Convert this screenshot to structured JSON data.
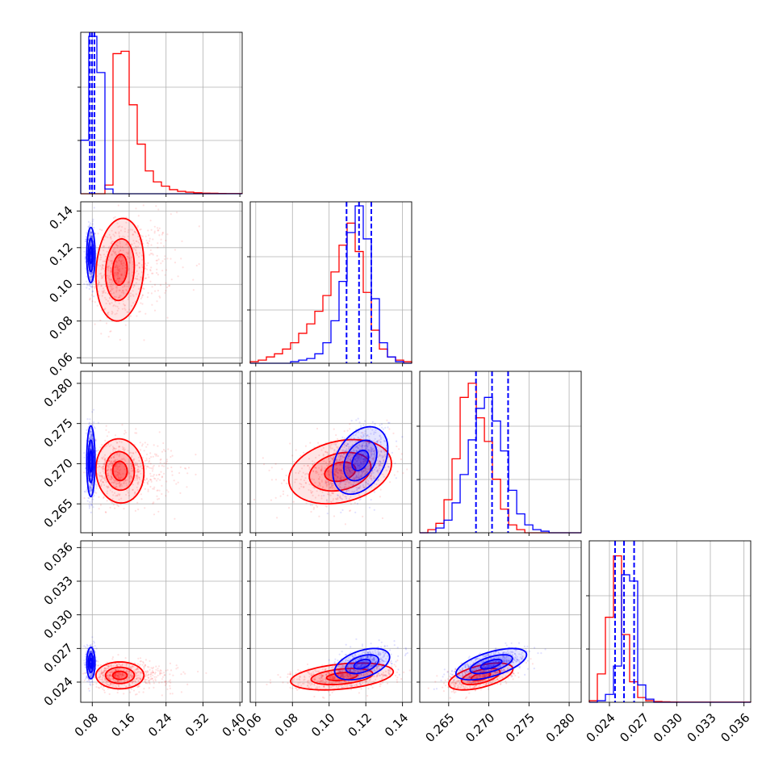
{
  "chart_data": {
    "type": "corner",
    "grid": true,
    "series": [
      {
        "name": "",
        "color": "#0000ff"
      },
      {
        "name": "",
        "color": "#ff0000"
      }
    ],
    "parameters": [
      {
        "ticks": [
          0.08,
          0.16,
          0.24,
          0.32,
          0.4
        ],
        "tick_labels": [
          "0.08",
          "0.16",
          "0.24",
          "0.32",
          "0.40"
        ],
        "range": [
          0.055,
          0.405
        ]
      },
      {
        "ticks": [
          0.06,
          0.08,
          0.1,
          0.12,
          0.14
        ],
        "tick_labels": [
          "0.06",
          "0.08",
          "0.10",
          "0.12",
          "0.14"
        ],
        "range": [
          0.057,
          0.145
        ]
      },
      {
        "ticks": [
          0.265,
          0.27,
          0.275,
          0.28
        ],
        "tick_labels": [
          "0.265",
          "0.270",
          "0.275",
          "0.280"
        ],
        "range": [
          0.2614,
          0.2815
        ]
      },
      {
        "ticks": [
          0.024,
          0.027,
          0.03,
          0.033,
          0.036
        ],
        "tick_labels": [
          "0.024",
          "0.027",
          "0.030",
          "0.033",
          "0.036"
        ],
        "range": [
          0.0222,
          0.0366
        ]
      }
    ],
    "histograms": [
      {
        "param": 0,
        "red": {
          "edges": [
            0.055,
            0.0725,
            0.09,
            0.1075,
            0.125,
            0.1425,
            0.16,
            0.1775,
            0.195,
            0.2125,
            0.23,
            0.2475,
            0.265,
            0.2825,
            0.3,
            0.3175,
            0.335,
            0.3525,
            0.37,
            0.3875,
            0.405
          ],
          "counts": [
            0,
            0,
            0,
            0.055,
            0.89,
            0.905,
            0.565,
            0.315,
            0.145,
            0.075,
            0.048,
            0.026,
            0.015,
            0.01,
            0.006,
            0.004,
            0.003,
            0.002,
            0.001,
            0.001
          ]
        },
        "blue": {
          "edges": [
            0.055,
            0.0725,
            0.09,
            0.1075,
            0.125,
            0.1425,
            0.16,
            0.1775,
            0.195,
            0.2125,
            0.23,
            0.2475,
            0.265,
            0.2825,
            0.3,
            0.3175,
            0.335,
            0.3525,
            0.37,
            0.3875,
            0.405
          ],
          "counts": [
            0.34,
            1.0,
            0.77,
            0.03,
            0,
            0,
            0,
            0,
            0,
            0,
            0,
            0,
            0,
            0,
            0,
            0,
            0,
            0,
            0,
            0
          ]
        },
        "quantiles": [
          0.0748,
          0.0796,
          0.0848
        ]
      },
      {
        "param": 1,
        "red": {
          "edges": [
            0.057,
            0.0614,
            0.0658,
            0.0702,
            0.0746,
            0.079,
            0.0834,
            0.0878,
            0.0922,
            0.0966,
            0.101,
            0.1054,
            0.1098,
            0.1142,
            0.1186,
            0.123,
            0.1274,
            0.1318,
            0.1362,
            0.1406,
            0.145
          ],
          "counts": [
            0.01,
            0.02,
            0.04,
            0.06,
            0.09,
            0.13,
            0.19,
            0.25,
            0.33,
            0.43,
            0.58,
            0.75,
            0.89,
            0.71,
            0.45,
            0.21,
            0.09,
            0.04,
            0.02,
            0.01
          ]
        },
        "blue": {
          "edges": [
            0.057,
            0.0614,
            0.0658,
            0.0702,
            0.0746,
            0.079,
            0.0834,
            0.0878,
            0.0922,
            0.0966,
            0.101,
            0.1054,
            0.1098,
            0.1142,
            0.1186,
            0.123,
            0.1274,
            0.1318,
            0.1362,
            0.1406,
            0.145
          ],
          "counts": [
            0,
            0,
            0,
            0,
            0,
            0.01,
            0.02,
            0.03,
            0.06,
            0.13,
            0.27,
            0.52,
            0.83,
            1.0,
            0.79,
            0.41,
            0.13,
            0.04,
            0.01,
            0
          ]
        },
        "quantiles": [
          0.1095,
          0.1163,
          0.123
        ]
      },
      {
        "param": 2,
        "red": {
          "edges": [
            0.2614,
            0.26241,
            0.26341,
            0.26442,
            0.26542,
            0.26643,
            0.26744,
            0.26844,
            0.26945,
            0.27045,
            0.27146,
            0.27247,
            0.27347,
            0.27448,
            0.27548,
            0.27649,
            0.2775,
            0.2785,
            0.27951,
            0.28051,
            0.2815
          ],
          "counts": [
            0,
            0.02,
            0.06,
            0.21,
            0.47,
            0.86,
            0.95,
            0.73,
            0.58,
            0.34,
            0.15,
            0.05,
            0.02,
            0,
            0,
            0,
            0,
            0,
            0,
            0
          ]
        },
        "blue": {
          "edges": [
            0.2614,
            0.26241,
            0.26341,
            0.26442,
            0.26542,
            0.26643,
            0.26744,
            0.26844,
            0.26945,
            0.27045,
            0.27146,
            0.27247,
            0.27347,
            0.27448,
            0.27548,
            0.27649,
            0.2775,
            0.2785,
            0.27951,
            0.28051,
            0.2815
          ],
          "counts": [
            0,
            0,
            0.03,
            0.08,
            0.19,
            0.37,
            0.59,
            0.79,
            0.86,
            0.71,
            0.52,
            0.27,
            0.12,
            0.05,
            0.02,
            0.01,
            0,
            0,
            0,
            0
          ]
        },
        "quantiles": [
          0.2684,
          0.2704,
          0.2724
        ]
      },
      {
        "param": 3,
        "red": {
          "edges": [
            0.0222,
            0.02292,
            0.02364,
            0.02436,
            0.02508,
            0.0258,
            0.02652,
            0.02724,
            0.02796,
            0.02868,
            0.0294,
            0.03012,
            0.03084,
            0.03156,
            0.03228,
            0.033,
            0.03372,
            0.03444,
            0.03516,
            0.03588,
            0.0366
          ],
          "counts": [
            0.01,
            0.18,
            0.54,
            0.93,
            0.43,
            0.13,
            0.03,
            0.01,
            0.005,
            0.003,
            0.002,
            0.001,
            0.001,
            0.001,
            0.001,
            0.001,
            0.001,
            0.001,
            0.001,
            0.001
          ]
        },
        "blue": {
          "edges": [
            0.0222,
            0.02292,
            0.02364,
            0.02436,
            0.02508,
            0.0258,
            0.02652,
            0.02724,
            0.02796,
            0.02868,
            0.0294,
            0.03012,
            0.03084,
            0.03156,
            0.03228,
            0.033,
            0.03372,
            0.03444,
            0.03516,
            0.03588,
            0.0366
          ],
          "counts": [
            0,
            0.01,
            0.05,
            0.23,
            0.81,
            0.77,
            0.11,
            0.02,
            0,
            0,
            0,
            0,
            0,
            0,
            0,
            0,
            0,
            0,
            0,
            0
          ]
        },
        "quantiles": [
          0.0245,
          0.0253,
          0.0262
        ]
      }
    ],
    "scatter_panels": [
      {
        "x_param": 0,
        "y_param": 1,
        "blue": {
          "mean": [
            0.077,
            0.116
          ],
          "sd": [
            0.0045,
            0.0075
          ],
          "rho": 0.0
        },
        "red": {
          "mean": [
            0.14,
            0.108
          ],
          "sd": [
            0.026,
            0.014
          ],
          "rho": 0.12
        }
      },
      {
        "x_param": 0,
        "y_param": 2,
        "blue": {
          "mean": [
            0.077,
            0.2703
          ],
          "sd": [
            0.0045,
            0.0022
          ],
          "rho": 0.0
        },
        "red": {
          "mean": [
            0.14,
            0.2691
          ],
          "sd": [
            0.026,
            0.002
          ],
          "rho": -0.05
        }
      },
      {
        "x_param": 1,
        "y_param": 2,
        "blue": {
          "mean": [
            0.117,
            0.2704
          ],
          "sd": [
            0.0075,
            0.0021
          ],
          "rho": 0.35
        },
        "red": {
          "mean": [
            0.106,
            0.269
          ],
          "sd": [
            0.014,
            0.002
          ],
          "rho": 0.25
        }
      },
      {
        "x_param": 0,
        "y_param": 3,
        "blue": {
          "mean": [
            0.077,
            0.0257
          ],
          "sd": [
            0.0045,
            0.0007
          ],
          "rho": 0.0
        },
        "red": {
          "mean": [
            0.14,
            0.0246
          ],
          "sd": [
            0.026,
            0.0006
          ],
          "rho": 0.0
        }
      },
      {
        "x_param": 1,
        "y_param": 3,
        "blue": {
          "mean": [
            0.118,
            0.0256
          ],
          "sd": [
            0.0075,
            0.0007
          ],
          "rho": 0.45
        },
        "red": {
          "mean": [
            0.107,
            0.0245
          ],
          "sd": [
            0.014,
            0.0006
          ],
          "rho": 0.35
        }
      },
      {
        "x_param": 2,
        "y_param": 3,
        "blue": {
          "mean": [
            0.2703,
            0.0256
          ],
          "sd": [
            0.0022,
            0.0007
          ],
          "rho": 0.6
        },
        "red": {
          "mean": [
            0.269,
            0.0245
          ],
          "sd": [
            0.002,
            0.0006
          ],
          "rho": 0.55
        }
      }
    ]
  }
}
